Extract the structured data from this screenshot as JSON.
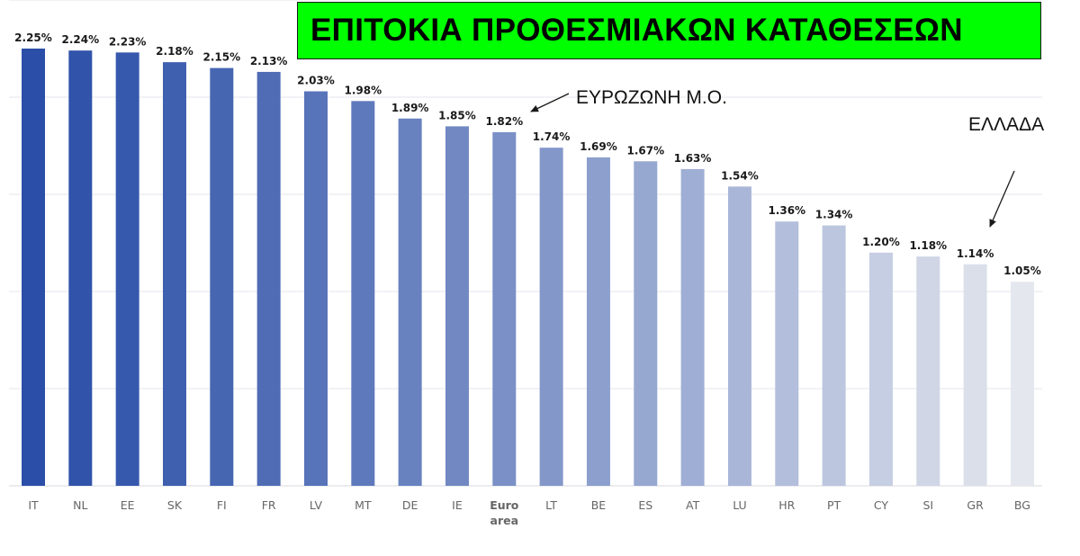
{
  "title": "ΕΠΙΤΟΚΙΑ ΠΡΟΘΕΣΜΙΑΚΩΝ ΚΑΤΑΘΕΣΕΩΝ",
  "annotations": {
    "eurozone": "ΕΥΡΩΖΩΝΗ Μ.Ο.",
    "greece": "ΕΛΛΑΔΑ"
  },
  "colors": {
    "title_background": "#00ff00",
    "bar_dark": "#2b4fa8",
    "bar_light": "#e4e7ee",
    "grid": "#e6e6ee"
  },
  "chart_data": {
    "type": "bar",
    "categories": [
      "IT",
      "NL",
      "EE",
      "SK",
      "FI",
      "FR",
      "LV",
      "MT",
      "DE",
      "IE",
      "Euro area",
      "LT",
      "BE",
      "ES",
      "AT",
      "LU",
      "HR",
      "PT",
      "CY",
      "SI",
      "GR",
      "BG"
    ],
    "values": [
      2.25,
      2.24,
      2.23,
      2.18,
      2.15,
      2.13,
      2.03,
      1.98,
      1.89,
      1.85,
      1.82,
      1.74,
      1.69,
      1.67,
      1.63,
      1.54,
      1.36,
      1.34,
      1.2,
      1.18,
      1.14,
      1.05
    ],
    "data_labels": [
      "2.25%",
      "2.24%",
      "2.23%",
      "2.18%",
      "2.15%",
      "2.13%",
      "2.03%",
      "1.98%",
      "1.89%",
      "1.85%",
      "1.82%",
      "1.74%",
      "1.69%",
      "1.67%",
      "1.63%",
      "1.54%",
      "1.36%",
      "1.34%",
      "1.20%",
      "1.18%",
      "1.14%",
      "1.05%"
    ],
    "title": "ΕΠΙΤΟΚΙΑ ΠΡΟΘΕΣΜΙΑΚΩΝ ΚΑΤΑΘΕΣΕΩΝ",
    "xlabel": "",
    "ylabel": "",
    "ylim": [
      0,
      2.5
    ],
    "grid": true,
    "legend": "none",
    "highlighted_category": "Euro area"
  }
}
